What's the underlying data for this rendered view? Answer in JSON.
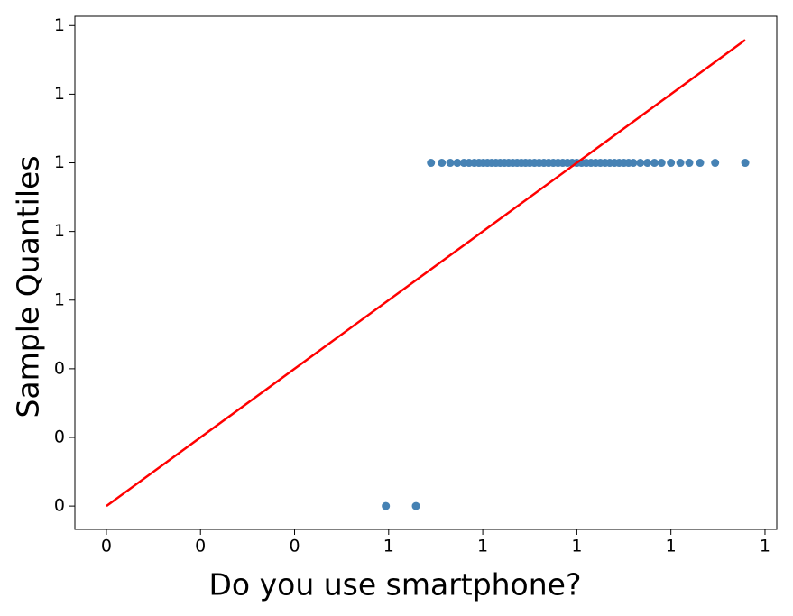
{
  "chart_data": {
    "type": "scatter",
    "xlabel": "Do you use smartphone?",
    "ylabel": "Sample Quantiles",
    "xlim": [
      -0.067,
      1.425
    ],
    "ylim": [
      -0.068,
      1.427
    ],
    "xticks": [
      0,
      {
        "value": 0.2,
        "label": "0"
      },
      {
        "value": 0.4,
        "label": "0"
      },
      {
        "value": 0.6,
        "label": "1"
      },
      {
        "value": 0.8,
        "label": "1"
      },
      1,
      {
        "value": 1.2,
        "label": "1"
      },
      {
        "value": 1.4,
        "label": "1"
      }
    ],
    "yticks": [
      0,
      {
        "value": 0.2,
        "label": "0"
      },
      {
        "value": 0.4,
        "label": "0"
      },
      {
        "value": 0.6,
        "label": "1"
      },
      {
        "value": 0.8,
        "label": "1"
      },
      1,
      {
        "value": 1.2,
        "label": "1"
      },
      {
        "value": 1.4,
        "label": "1"
      }
    ],
    "series": [
      {
        "color": "#4682b4",
        "x": [
          0.594,
          0.658,
          0.69,
          0.713,
          0.731,
          0.746,
          0.76,
          0.771,
          0.782,
          0.792,
          0.801,
          0.81,
          0.819,
          0.828,
          0.837,
          0.846,
          0.855,
          0.864,
          0.873,
          0.882,
          0.891,
          0.9,
          0.91,
          0.92,
          0.93,
          0.94,
          0.95,
          0.96,
          0.97,
          0.98,
          0.99,
          1.0,
          1.01,
          1.02,
          1.03,
          1.04,
          1.05,
          1.06,
          1.07,
          1.08,
          1.09,
          1.1,
          1.11,
          1.12,
          1.135,
          1.15,
          1.165,
          1.18,
          1.2,
          1.22,
          1.239,
          1.262,
          1.294,
          1.358
        ],
        "values": [
          0,
          0,
          1,
          1,
          1,
          1,
          1,
          1,
          1,
          1,
          1,
          1,
          1,
          1,
          1,
          1,
          1,
          1,
          1,
          1,
          1,
          1,
          1,
          1,
          1,
          1,
          1,
          1,
          1,
          1,
          1,
          1,
          1,
          1,
          1,
          1,
          1,
          1,
          1,
          1,
          1,
          1,
          1,
          1,
          1,
          1,
          1,
          1,
          1,
          1,
          1,
          1,
          1,
          1
        ]
      }
    ],
    "reference_line": {
      "color": "#ff0000",
      "x": [
        0,
        1.358
      ],
      "values": [
        0,
        1.358
      ]
    }
  }
}
